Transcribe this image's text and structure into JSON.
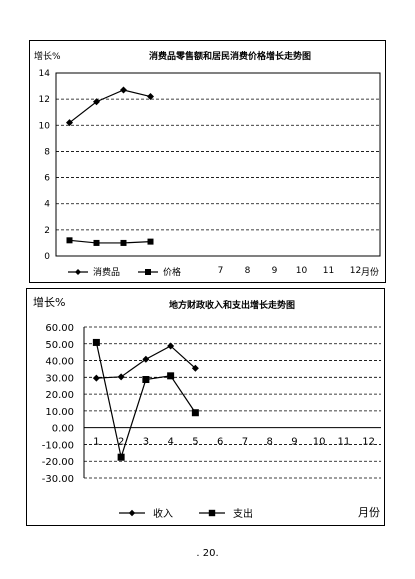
{
  "chart_data": [
    {
      "type": "line",
      "title": "消费品零售额和居民消费价格增长走势图",
      "ylabel": "增长%",
      "xlabel": "月份",
      "ylim": [
        0,
        14
      ],
      "yticks": [
        "0",
        "2",
        "4",
        "6",
        "8",
        "10",
        "12",
        "14"
      ],
      "x_tick_labels": [
        "7",
        "8",
        "9",
        "10",
        "11",
        "12"
      ],
      "legend": "bottom-left",
      "grid": true,
      "series": [
        {
          "name": "消费品",
          "x": [
            1,
            2,
            3,
            4
          ],
          "values": [
            10.2,
            11.8,
            12.7,
            12.2
          ],
          "marker": "diamond"
        },
        {
          "name": "价格",
          "x": [
            1,
            2,
            3,
            4
          ],
          "values": [
            1.2,
            1.0,
            1.0,
            1.1
          ],
          "marker": "square"
        }
      ]
    },
    {
      "type": "line",
      "title": "地方财政收入和支出增长走势图",
      "ylabel": "增长%",
      "xlabel": "月份",
      "ylim": [
        -30,
        60
      ],
      "yticks": [
        "60.00",
        "50.00",
        "40.00",
        "30.00",
        "20.00",
        "10.00",
        "0.00",
        "-10.00",
        "-20.00",
        "-30.00"
      ],
      "x_tick_labels": [
        "1",
        "2",
        "3",
        "4",
        "5",
        "6",
        "7",
        "8",
        "9",
        "10",
        "11",
        "12"
      ],
      "legend": "bottom-center",
      "grid": true,
      "series": [
        {
          "name": "收入",
          "x": [
            1,
            2,
            3,
            4,
            5
          ],
          "values": [
            29.5,
            30.3,
            40.8,
            48.7,
            35.4
          ],
          "marker": "diamond"
        },
        {
          "name": "支出",
          "x": [
            1,
            2,
            3,
            4,
            5
          ],
          "values": [
            50.8,
            -17.6,
            28.7,
            30.9,
            8.9
          ],
          "marker": "square"
        }
      ]
    }
  ],
  "page_number": ". 20."
}
